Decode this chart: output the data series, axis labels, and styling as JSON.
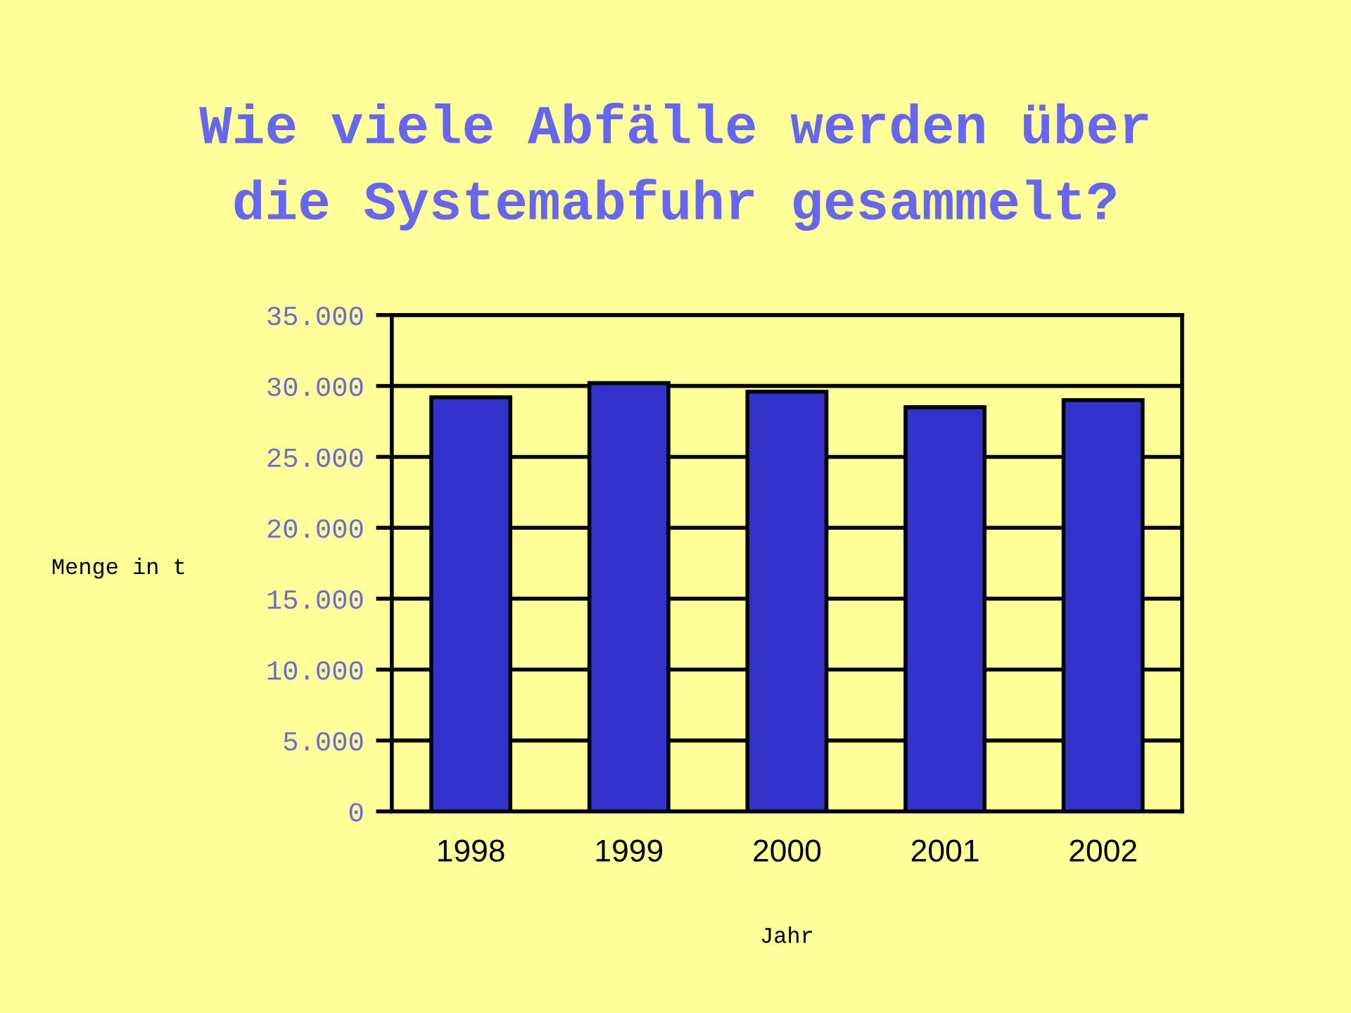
{
  "chart_data": {
    "type": "bar",
    "title": "Wie viele Abfälle werden über\ndie Systemabfuhr gesammelt?",
    "xlabel": "Jahr",
    "ylabel": "Menge in t",
    "categories": [
      "1998",
      "1999",
      "2000",
      "2001",
      "2002"
    ],
    "values": [
      29200,
      30200,
      29600,
      28500,
      29000
    ],
    "color": "#3333cc",
    "ylim": [
      0,
      35000
    ],
    "yticks": [
      {
        "value": 0,
        "label": "0"
      },
      {
        "value": 5000,
        "label": "5.000"
      },
      {
        "value": 10000,
        "label": "10.000"
      },
      {
        "value": 15000,
        "label": "15.000"
      },
      {
        "value": 20000,
        "label": "20.000"
      },
      {
        "value": 25000,
        "label": "25.000"
      },
      {
        "value": 30000,
        "label": "30.000"
      },
      {
        "value": 35000,
        "label": "35.000"
      }
    ],
    "grid": "y"
  }
}
